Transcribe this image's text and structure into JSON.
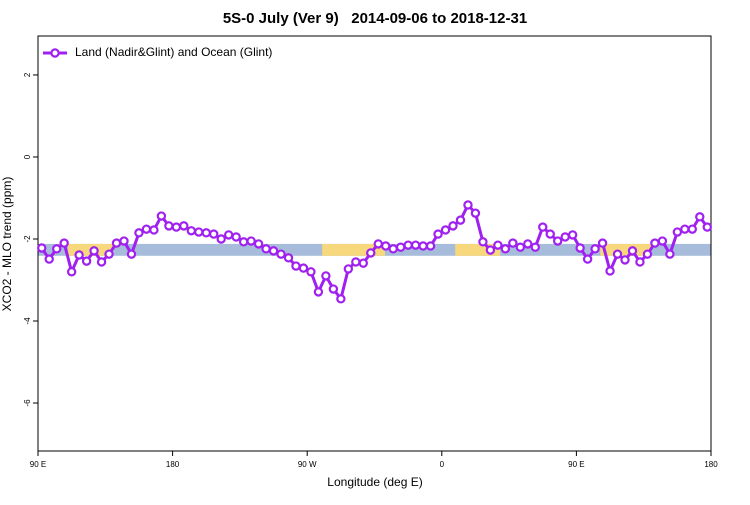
{
  "chart_data": {
    "type": "line",
    "title": "5S-0 July (Ver 9)   2014-09-06 to 2018-12-31",
    "x_label": "Longitude (deg E)",
    "y_label": "XCO2 - MLO trend (ppm)",
    "xlim": [
      90,
      540
    ],
    "ylim": [
      2.95,
      -7.17
    ],
    "xticks": [
      {
        "value": 90,
        "label": "90 E"
      },
      180,
      {
        "value": 270,
        "label": "90 W"
      },
      {
        "value": 360,
        "label": "0"
      },
      {
        "value": 450,
        "label": "90 E"
      },
      {
        "value": 540,
        "label": "180"
      }
    ],
    "yticks": [
      2,
      0,
      -2,
      -4,
      -6
    ],
    "legend": "top-left",
    "band": {
      "ylim": [
        -2.12,
        -2.41
      ],
      "color": "#a7bcdb",
      "segments": [
        {
          "x": [
            110,
            140
          ],
          "color": "#f7d87c"
        },
        {
          "x": [
            280,
            322
          ],
          "color": "#f7d87c"
        },
        {
          "x": [
            369,
            399
          ],
          "color": "#f7d87c"
        },
        {
          "x": [
            466,
            500
          ],
          "color": "#f7d87c"
        }
      ]
    },
    "x": [
      92.5,
      97.5,
      102.5,
      107.5,
      112.5,
      117.5,
      122.5,
      127.5,
      132.5,
      137.5,
      142.5,
      147.5,
      152.5,
      157.5,
      162.5,
      167.5,
      172.5,
      177.5,
      182.5,
      187.5,
      192.5,
      197.5,
      202.5,
      207.5,
      212.5,
      217.5,
      222.5,
      227.5,
      232.5,
      237.5,
      242.5,
      247.5,
      252.5,
      257.5,
      262.5,
      267.5,
      272.5,
      277.5,
      282.5,
      287.5,
      292.5,
      297.5,
      302.5,
      307.5,
      312.5,
      317.5,
      322.5,
      327.5,
      332.5,
      337.5,
      342.5,
      347.5,
      352.5,
      357.5,
      362.5,
      367.5,
      372.5,
      377.5,
      382.5,
      387.5,
      392.5,
      397.5,
      402.5,
      407.5,
      412.5,
      417.5,
      422.5,
      427.5,
      432.5,
      437.5,
      442.5,
      447.5,
      452.5,
      457.5,
      462.5,
      467.5,
      472.5,
      477.5,
      482.5,
      487.5,
      492.5,
      497.5,
      502.5,
      507.5,
      512.5,
      517.5,
      522.5,
      527.5,
      532.5,
      537.5
    ],
    "series": [
      {
        "name": "Land (Nadir&Glint) and Ocean (Glint)",
        "color": "#a020f0",
        "values": [
          -2.22,
          -2.49,
          -2.24,
          -2.1,
          -2.8,
          -2.39,
          -2.54,
          -2.29,
          -2.56,
          -2.37,
          -2.1,
          -2.05,
          -2.37,
          -1.85,
          -1.76,
          -1.78,
          -1.44,
          -1.68,
          -1.71,
          -1.68,
          -1.8,
          -1.83,
          -1.85,
          -1.88,
          -2.0,
          -1.9,
          -1.95,
          -2.07,
          -2.05,
          -2.12,
          -2.24,
          -2.29,
          -2.37,
          -2.46,
          -2.66,
          -2.71,
          -2.8,
          -3.29,
          -2.9,
          -3.22,
          -3.46,
          -2.73,
          -2.56,
          -2.59,
          -2.34,
          -2.12,
          -2.17,
          -2.24,
          -2.2,
          -2.15,
          -2.15,
          -2.17,
          -2.17,
          -1.88,
          -1.78,
          -1.68,
          -1.54,
          -1.17,
          -1.37,
          -2.07,
          -2.27,
          -2.15,
          -2.24,
          -2.1,
          -2.2,
          -2.12,
          -2.2,
          -1.71,
          -1.88,
          -2.05,
          -1.95,
          -1.9,
          -2.22,
          -2.49,
          -2.24,
          -2.1,
          -2.78,
          -2.37,
          -2.51,
          -2.29,
          -2.56,
          -2.37,
          -2.1,
          -2.05,
          -2.37,
          -1.83,
          -1.76,
          -1.76,
          -1.46,
          -1.71
        ]
      }
    ]
  }
}
